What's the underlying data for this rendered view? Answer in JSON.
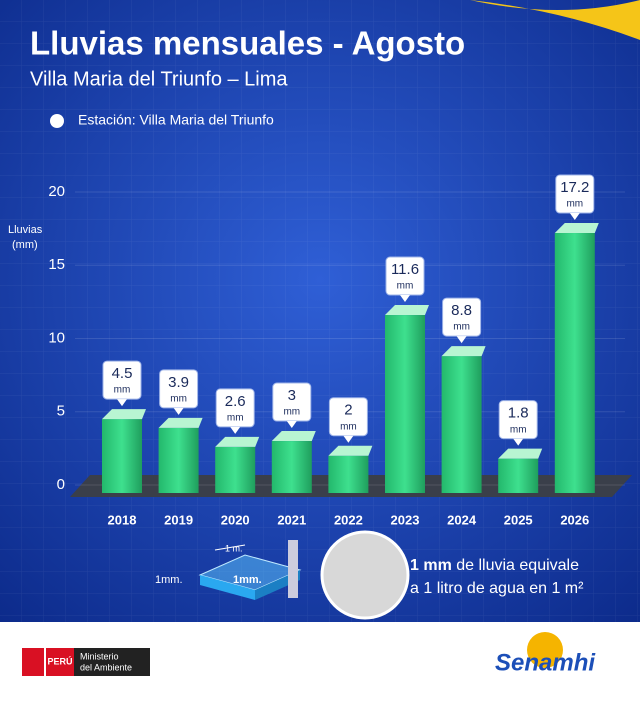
{
  "chart_data": {
    "type": "bar",
    "title": "Lluvias mensuales - Agosto",
    "subtitle": "Villa Maria del Triunfo – Lima",
    "legend": "Estación: Villa Maria del Triunfo",
    "y_label": [
      "Lluvias",
      "(mm)"
    ],
    "categories": [
      "2018",
      "2019",
      "2020",
      "2021",
      "2022",
      "2023",
      "2024",
      "2025",
      "2026"
    ],
    "values": [
      4.5,
      3.9,
      2.6,
      3,
      2,
      11.6,
      8.8,
      1.8,
      17.2
    ],
    "value_unit": "mm",
    "color": "#2fcf7f",
    "ylim": [
      0,
      20
    ],
    "yticks": [
      0,
      5,
      10,
      15,
      20
    ],
    "grid": true
  },
  "note": {
    "cube_top": "1 m.",
    "cube_side": "1mm.",
    "cube_face": "1mm.",
    "bold": "1 mm",
    "line1": "de lluvia equivale",
    "line2": "a 1 litro de agua en 1 m²"
  },
  "footer": {
    "country": "PERÚ",
    "ministry": [
      "Ministerio",
      "del Ambiente"
    ],
    "brand": "Senamhi"
  }
}
